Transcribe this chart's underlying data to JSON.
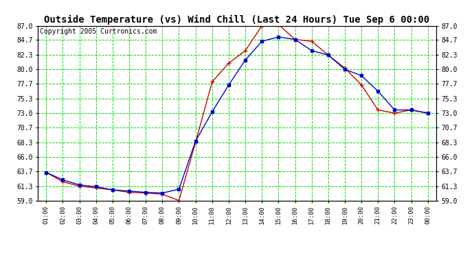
{
  "title": "Outside Temperature (vs) Wind Chill (Last 24 Hours) Tue Sep 6 00:00",
  "copyright": "Copyright 2005 Curtronics.com",
  "x_labels": [
    "01:00",
    "02:00",
    "03:00",
    "04:00",
    "05:00",
    "06:00",
    "07:00",
    "08:00",
    "09:00",
    "10:00",
    "11:00",
    "12:00",
    "13:00",
    "14:00",
    "15:00",
    "16:00",
    "17:00",
    "18:00",
    "19:00",
    "20:00",
    "21:00",
    "22:00",
    "23:00",
    "00:00"
  ],
  "outside_temp": [
    63.5,
    62.3,
    61.5,
    61.2,
    60.7,
    60.5,
    60.3,
    60.2,
    60.8,
    68.5,
    73.2,
    77.5,
    81.5,
    84.5,
    85.2,
    84.8,
    83.0,
    82.3,
    80.0,
    79.0,
    76.5,
    73.5,
    73.5,
    73.0
  ],
  "wind_chill": [
    63.5,
    62.0,
    61.3,
    61.0,
    60.7,
    60.3,
    60.2,
    60.0,
    59.0,
    68.3,
    78.0,
    81.0,
    83.0,
    87.0,
    87.2,
    84.8,
    84.5,
    82.3,
    80.2,
    77.5,
    73.5,
    73.0,
    73.5,
    73.0
  ],
  "ylim": [
    59.0,
    87.0
  ],
  "yticks": [
    59.0,
    61.3,
    63.7,
    66.0,
    68.3,
    70.7,
    73.0,
    75.3,
    77.7,
    80.0,
    82.3,
    84.7,
    87.0
  ],
  "outside_color": "#0000cc",
  "windchill_color": "#cc0000",
  "bg_color": "#ffffff",
  "grid_color": "#00dd00",
  "title_fontsize": 10,
  "copyright_fontsize": 7
}
